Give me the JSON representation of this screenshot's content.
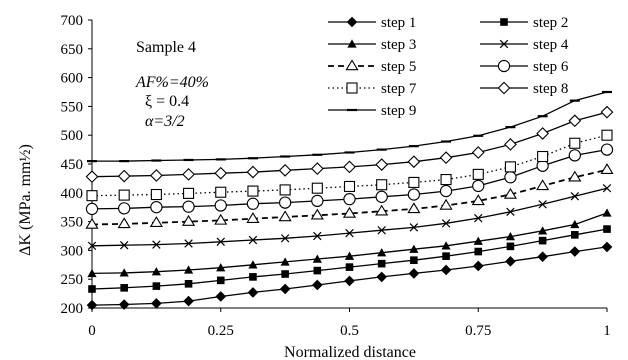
{
  "chart_data": {
    "type": "line",
    "xlabel": "Normalized distance",
    "ylabel": "ΔK (MPa. mm½)",
    "xlim": [
      0,
      1
    ],
    "ylim": [
      200,
      700
    ],
    "xticks": [
      0,
      0.25,
      0.5,
      0.75,
      1
    ],
    "xtick_labels": [
      "0",
      "0.25",
      "0.5",
      "0.75",
      "1"
    ],
    "yticks": [
      200,
      250,
      300,
      350,
      400,
      450,
      500,
      550,
      600,
      650,
      700
    ],
    "ytick_labels": [
      "200",
      "250",
      "300",
      "350",
      "400",
      "450",
      "500",
      "550",
      "600",
      "650",
      "700"
    ],
    "grid": false,
    "legend_placement": "top-right",
    "annotations": {
      "sample": "Sample 4",
      "af": "AF%=40%",
      "xi": "ξ = 0.4",
      "alpha": "α=3/2"
    },
    "x": [
      0,
      0.0625,
      0.125,
      0.1875,
      0.25,
      0.3125,
      0.375,
      0.4375,
      0.5,
      0.5625,
      0.625,
      0.6875,
      0.75,
      0.8125,
      0.875,
      0.9375,
      1
    ],
    "series": [
      {
        "name": "step 1",
        "color": "#000000",
        "marker": "diamond-filled",
        "line": "solid",
        "values": [
          205,
          206,
          208,
          212,
          220,
          227,
          233,
          240,
          247,
          254,
          260,
          266,
          273,
          281,
          289,
          298,
          306
        ]
      },
      {
        "name": "step 2",
        "color": "#000000",
        "marker": "square-filled",
        "line": "solid",
        "values": [
          233,
          235,
          238,
          242,
          248,
          254,
          259,
          265,
          271,
          277,
          283,
          290,
          298,
          307,
          317,
          327,
          337
        ]
      },
      {
        "name": "step 3",
        "color": "#000000",
        "marker": "triangle-filled",
        "line": "solid",
        "values": [
          260,
          261,
          263,
          266,
          270,
          275,
          280,
          285,
          290,
          296,
          302,
          308,
          316,
          324,
          334,
          345,
          365
        ]
      },
      {
        "name": "step 4",
        "color": "#000000",
        "marker": "x",
        "line": "solid",
        "values": [
          308,
          309,
          310,
          312,
          315,
          318,
          321,
          325,
          330,
          335,
          340,
          347,
          356,
          367,
          380,
          394,
          408
        ]
      },
      {
        "name": "step 5",
        "color": "#000000",
        "marker": "triangle-open",
        "line": "dashed",
        "values": [
          345,
          346,
          348,
          350,
          352,
          355,
          358,
          361,
          364,
          368,
          372,
          378,
          386,
          397,
          412,
          427,
          440
        ]
      },
      {
        "name": "step 6",
        "color": "#000000",
        "marker": "circle-open",
        "line": "solid",
        "values": [
          372,
          373,
          375,
          376,
          378,
          381,
          383,
          386,
          389,
          393,
          397,
          403,
          412,
          427,
          447,
          465,
          475
        ]
      },
      {
        "name": "step 7",
        "color": "#000000",
        "marker": "square-open",
        "line": "dotted",
        "values": [
          395,
          396,
          397,
          399,
          401,
          403,
          405,
          408,
          411,
          414,
          418,
          423,
          432,
          445,
          463,
          486,
          500
        ]
      },
      {
        "name": "step 8",
        "color": "#000000",
        "marker": "diamond-open",
        "line": "solid",
        "values": [
          428,
          429,
          430,
          432,
          434,
          436,
          439,
          442,
          445,
          449,
          454,
          461,
          470,
          484,
          503,
          525,
          540
        ]
      },
      {
        "name": "step 9",
        "color": "#000000",
        "marker": "dash",
        "line": "solid",
        "values": [
          455,
          455,
          456,
          457,
          458,
          460,
          463,
          466,
          470,
          475,
          481,
          489,
          499,
          514,
          533,
          560,
          575
        ]
      }
    ]
  }
}
